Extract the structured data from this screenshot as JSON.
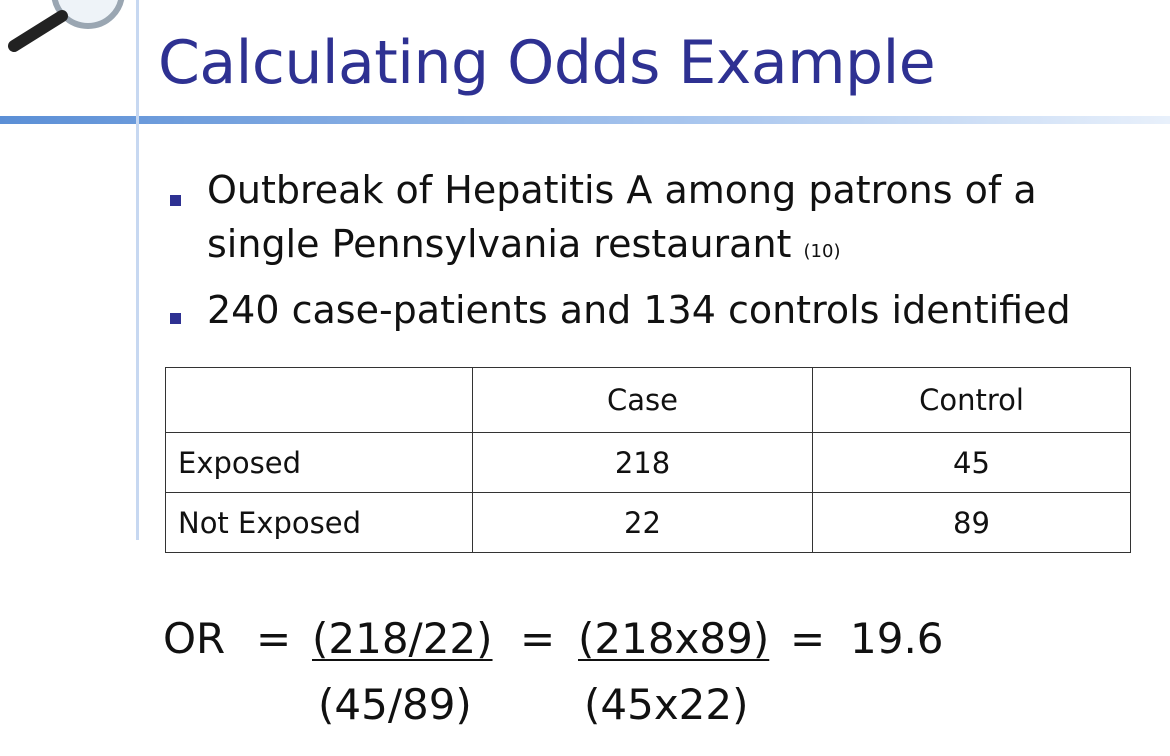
{
  "title": "Calculating Odds Example",
  "bullets": [
    {
      "text": "Outbreak of Hepatitis A among patrons of a",
      "text2": "single Pennsylvania restaurant",
      "ref": "(10)"
    },
    {
      "text": "240 case-patients and 134 controls identified"
    }
  ],
  "table": {
    "header": [
      "Case",
      "Control"
    ],
    "rows": [
      {
        "label": "Exposed",
        "values": [
          218,
          45
        ]
      },
      {
        "label": "Not Exposed",
        "values": [
          22,
          89
        ]
      }
    ]
  },
  "formula": {
    "lhs": "OR",
    "eq": "=",
    "fractions": [
      {
        "num": "(218/22)",
        "den": "(45/89)"
      },
      {
        "num": "(218x89)",
        "den": "(45x22)"
      }
    ],
    "result": "19.6"
  }
}
